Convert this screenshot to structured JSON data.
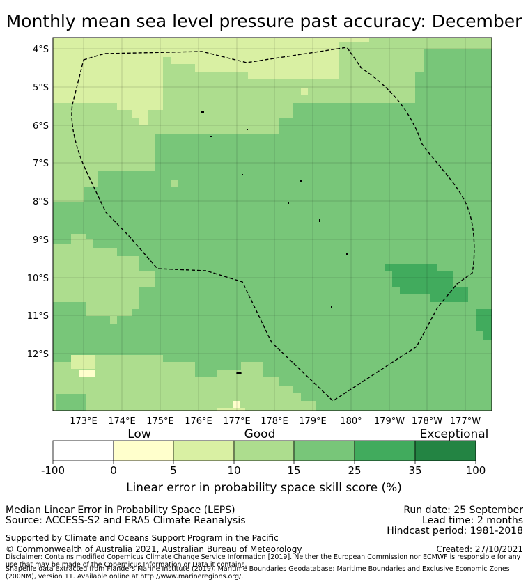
{
  "title": "Monthly mean sea level pressure past accuracy: December",
  "map": {
    "latitude_labels": [
      "4°S",
      "5°S",
      "6°S",
      "7°S",
      "8°S",
      "9°S",
      "10°S",
      "11°S",
      "12°S"
    ],
    "longitude_labels": [
      "173°E",
      "174°E",
      "175°E",
      "176°E",
      "177°E",
      "178°E",
      "179°E",
      "180°",
      "179°W",
      "178°W",
      "177°W"
    ],
    "boundary_style": "dashed black outline (Exclusive Economic Zone)"
  },
  "legend": {
    "categories": [
      "Low",
      "Good",
      "Exceptional"
    ],
    "tick_labels": [
      "-100",
      "0",
      "5",
      "10",
      "15",
      "25",
      "35",
      "100"
    ],
    "colors": [
      "#ffffff",
      "#ffffcc",
      "#d9f0a3",
      "#addd8e",
      "#78c679",
      "#41ab5d",
      "#238443"
    ],
    "axis_label": "Linear error in probability space skill score (%)"
  },
  "footer": {
    "method": "Median Linear Error in Probability Space (LEPS)",
    "source": "Source: ACCESS-S2 and ERA5 Climate Reanalysis",
    "run_date": "Run date: 25 September",
    "lead_time": "Lead time: 2 months",
    "hindcast": "Hindcast period: 1981-2018",
    "support": "Supported by Climate and Oceans Support Program in the Pacific",
    "copyright": "© Commonwealth of Australia 2021, Australian Bureau of Meteorology",
    "created": "Created: 27/10/2021",
    "disclaimer": "Disclaimer: Contains modified Copernicus Climate Change Service Information [2019]. Neither the European Commission nor ECMWF is responsible for any use that may be made of the Copernicus Information or Data it contains.",
    "shapefile": "Shapefile data extracted from Flanders Marine Institute (2019), Maritime Boundaries Geodatabase: Maritime Boundaries and Exclusive Economic Zones (200NM), version 11. Available online at http://www.marineregions.org/."
  }
}
